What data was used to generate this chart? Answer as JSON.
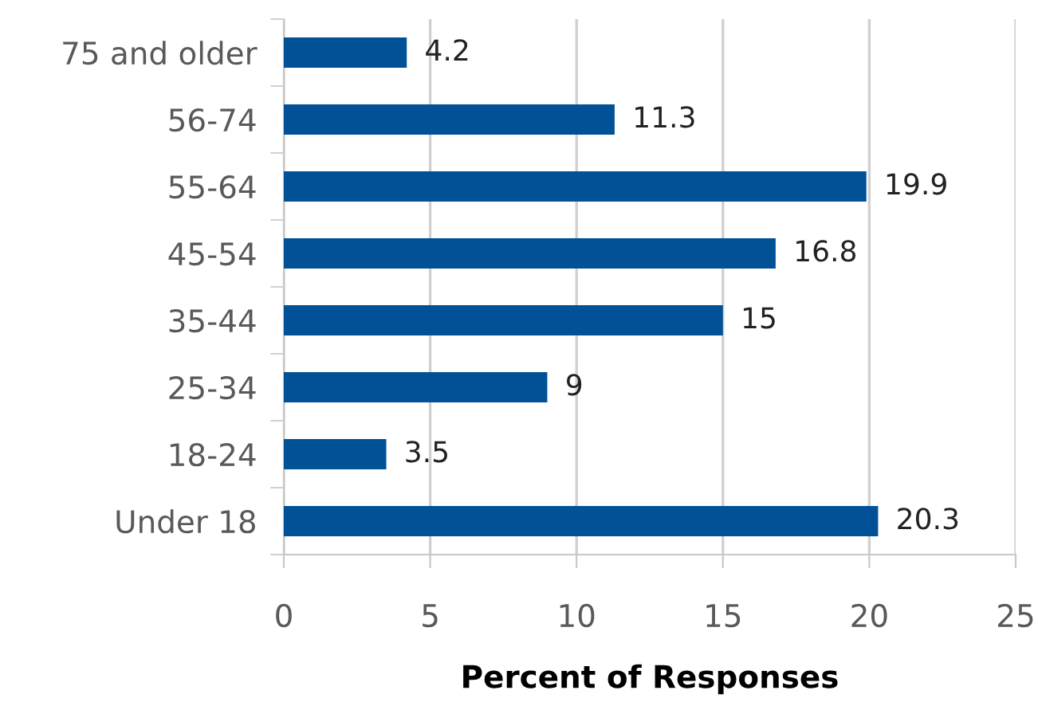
{
  "chart_data": {
    "type": "bar",
    "orientation": "horizontal",
    "xlabel": "Percent of Responses",
    "categories": [
      "75 and older",
      "56-74",
      "55-64",
      "45-54",
      "35-44",
      "25-34",
      "18-24",
      "Under 18"
    ],
    "values": [
      4.2,
      11.3,
      19.9,
      16.8,
      15,
      9,
      3.5,
      20.3
    ],
    "color": "#005196",
    "data_labels": true,
    "grid": "x",
    "xlim": [
      0,
      25
    ],
    "xticks": [
      0,
      5,
      10,
      15,
      20,
      25
    ]
  }
}
